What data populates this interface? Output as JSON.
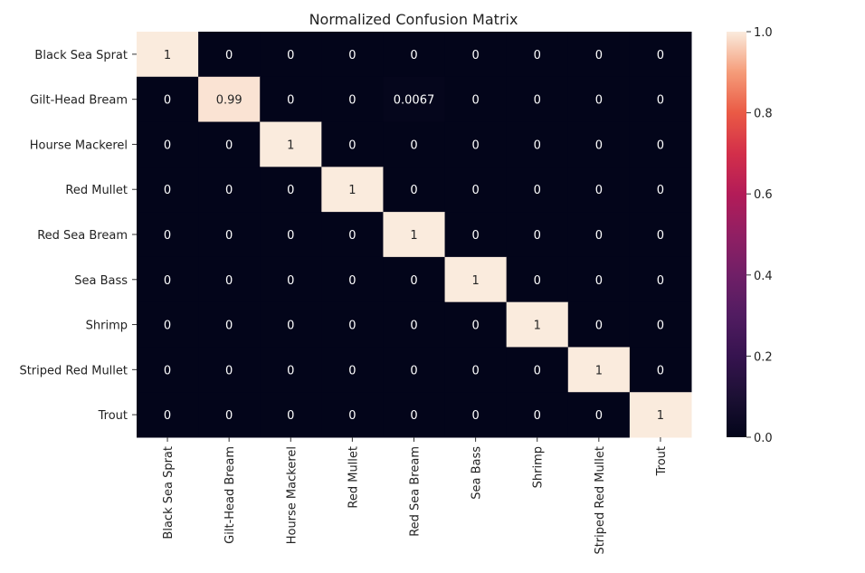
{
  "chart_data": {
    "type": "heatmap",
    "title": "Normalized Confusion Matrix",
    "xlabel": "",
    "ylabel": "",
    "row_labels": [
      "Black Sea Sprat",
      "Gilt-Head Bream",
      "Hourse Mackerel",
      "Red Mullet",
      "Red Sea Bream",
      "Sea Bass",
      "Shrimp",
      "Striped Red Mullet",
      "Trout"
    ],
    "col_labels": [
      "Black Sea Sprat",
      "Gilt-Head Bream",
      "Hourse Mackerel",
      "Red Mullet",
      "Red Sea Bream",
      "Sea Bass",
      "Shrimp",
      "Striped Red Mullet",
      "Trout"
    ],
    "values": [
      [
        1,
        0,
        0,
        0,
        0,
        0,
        0,
        0,
        0
      ],
      [
        0,
        0.99,
        0,
        0,
        0.0067,
        0,
        0,
        0,
        0
      ],
      [
        0,
        0,
        1,
        0,
        0,
        0,
        0,
        0,
        0
      ],
      [
        0,
        0,
        0,
        1,
        0,
        0,
        0,
        0,
        0
      ],
      [
        0,
        0,
        0,
        0,
        1,
        0,
        0,
        0,
        0
      ],
      [
        0,
        0,
        0,
        0,
        0,
        1,
        0,
        0,
        0
      ],
      [
        0,
        0,
        0,
        0,
        0,
        0,
        1,
        0,
        0
      ],
      [
        0,
        0,
        0,
        0,
        0,
        0,
        0,
        1,
        0
      ],
      [
        0,
        0,
        0,
        0,
        0,
        0,
        0,
        0,
        1
      ]
    ],
    "cell_text": [
      [
        "1",
        "0",
        "0",
        "0",
        "0",
        "0",
        "0",
        "0",
        "0"
      ],
      [
        "0",
        "0.99",
        "0",
        "0",
        "0.0067",
        "0",
        "0",
        "0",
        "0"
      ],
      [
        "0",
        "0",
        "1",
        "0",
        "0",
        "0",
        "0",
        "0",
        "0"
      ],
      [
        "0",
        "0",
        "0",
        "1",
        "0",
        "0",
        "0",
        "0",
        "0"
      ],
      [
        "0",
        "0",
        "0",
        "0",
        "1",
        "0",
        "0",
        "0",
        "0"
      ],
      [
        "0",
        "0",
        "0",
        "0",
        "0",
        "1",
        "0",
        "0",
        "0"
      ],
      [
        "0",
        "0",
        "0",
        "0",
        "0",
        "0",
        "1",
        "0",
        "0"
      ],
      [
        "0",
        "0",
        "0",
        "0",
        "0",
        "0",
        "0",
        "1",
        "0"
      ],
      [
        "0",
        "0",
        "0",
        "0",
        "0",
        "0",
        "0",
        "0",
        "1"
      ]
    ],
    "colorbar": {
      "range": [
        0.0,
        1.0
      ],
      "ticks": [
        0.0,
        0.2,
        0.4,
        0.6,
        0.8,
        1.0
      ],
      "tick_labels": [
        "0.0",
        "0.2",
        "0.4",
        "0.6",
        "0.8",
        "1.0"
      ],
      "colormap": "rocket"
    },
    "grid": false,
    "legend": "colorbar-right"
  }
}
